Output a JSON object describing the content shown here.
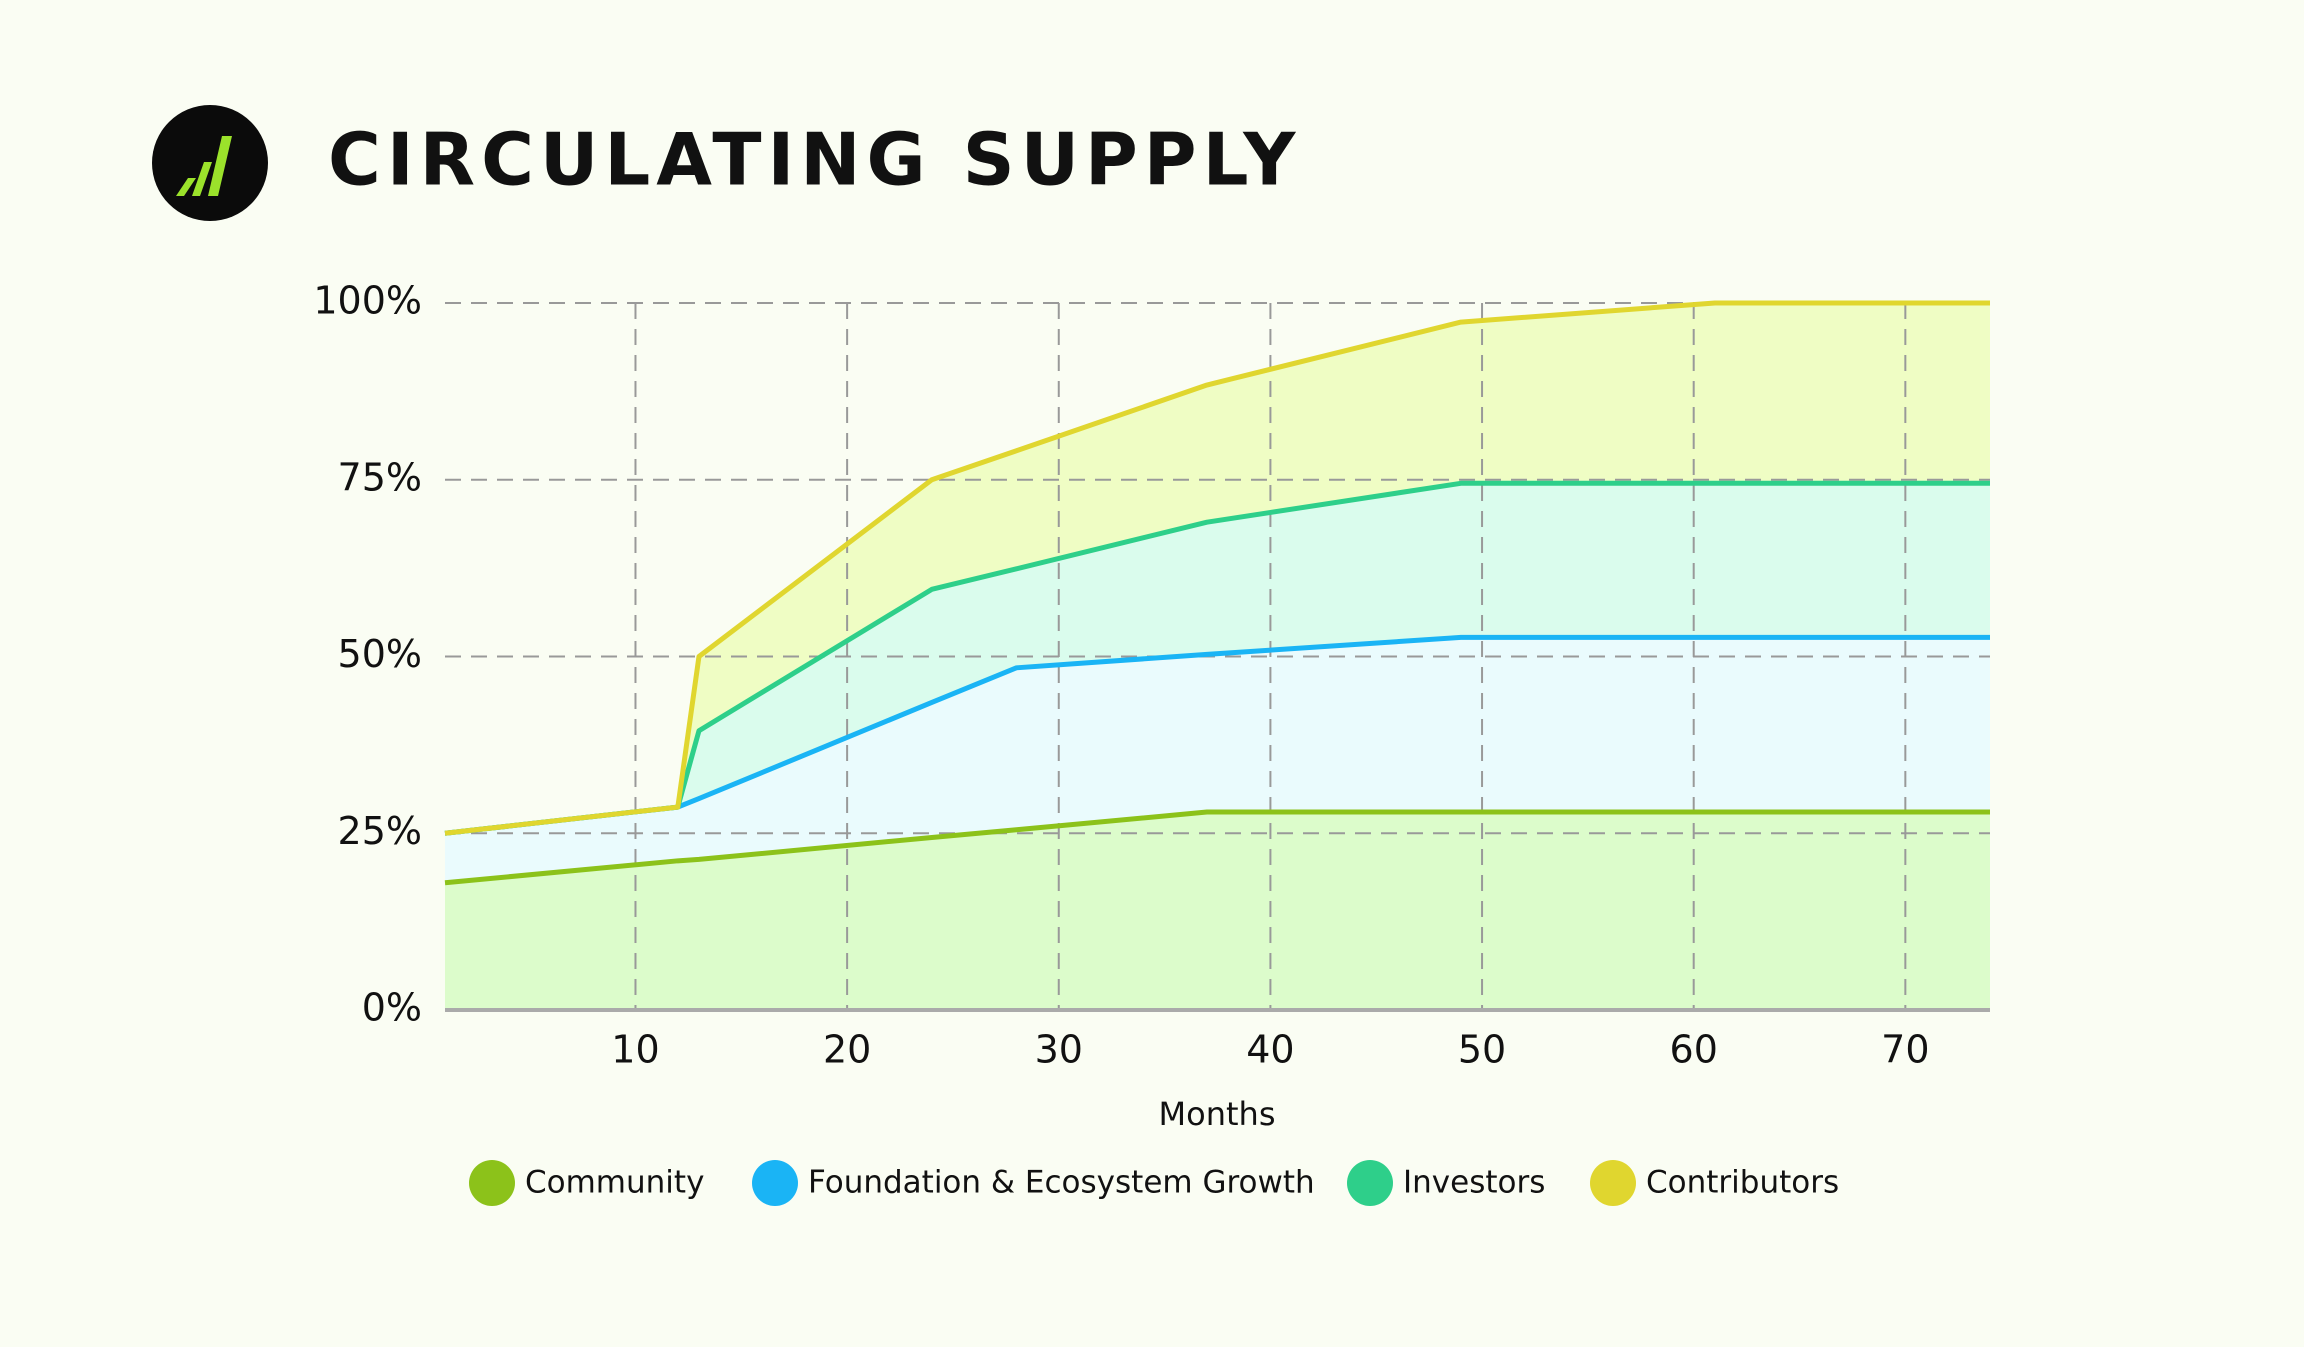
{
  "chart_data": {
    "type": "stacked_area",
    "title": "CIRCULATING SUPPLY",
    "xlabel": "Months",
    "x": [
      1,
      12,
      13,
      24,
      28,
      37,
      49,
      61,
      74
    ],
    "series": [
      {
        "name": "Community",
        "color": "#8cc21a",
        "fill": "#dcfccb",
        "values": [
          18,
          21.1,
          21.3,
          24.4,
          25.5,
          28,
          28,
          28,
          28
        ]
      },
      {
        "name": "Foundation & Ecosystem Growth",
        "color": "#1ab4f5",
        "fill": "#eafbfd",
        "values": [
          7,
          7.6,
          8.6,
          19.1,
          22.9,
          22.3,
          24.7,
          24.7,
          24.7
        ]
      },
      {
        "name": "Investors",
        "color": "#2ecf8a",
        "fill": "#dafced",
        "values": [
          0,
          0,
          9.6,
          16,
          14,
          18.7,
          21.8,
          21.8,
          21.8
        ]
      },
      {
        "name": "Contributors",
        "color": "#e0d62f",
        "fill": "#effdc4",
        "values": [
          0,
          0,
          10.5,
          15.5,
          16.7,
          19.4,
          22.8,
          25.5,
          25.5
        ]
      }
    ],
    "xlim": [
      1,
      74
    ],
    "ylim": [
      0,
      100
    ],
    "xticks": [
      10,
      20,
      30,
      40,
      50,
      60,
      70
    ],
    "yticks": [
      {
        "value": 0,
        "label": "0%"
      },
      {
        "value": 25,
        "label": "25%"
      },
      {
        "value": 50,
        "label": "50%"
      },
      {
        "value": 75,
        "label": "75%"
      },
      {
        "value": 100,
        "label": "100%"
      }
    ],
    "grid": true,
    "legend": "bottom"
  }
}
